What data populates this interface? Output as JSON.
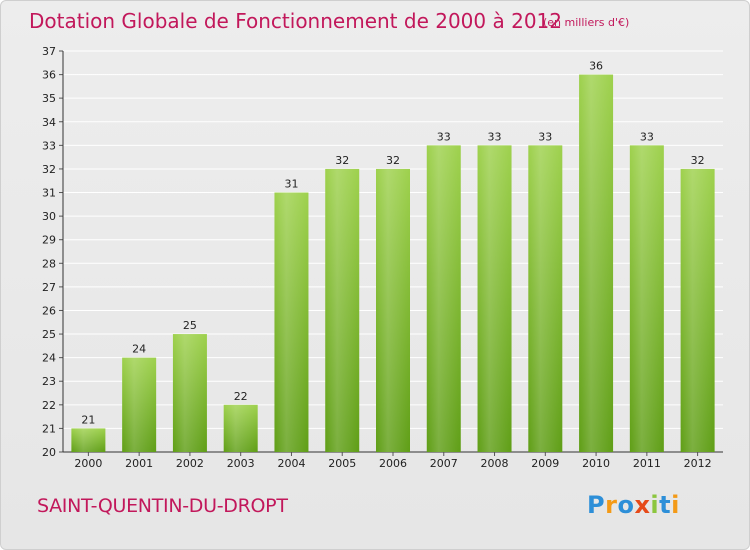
{
  "title": "Dotation Globale de Fonctionnement de 2000 à 2012",
  "subtitle": "(en milliers d'€)",
  "commune": "SAINT-QUENTIN-DU-DROPT",
  "logo_letters": [
    "P",
    "r",
    "o",
    "x",
    "i",
    "t",
    "i"
  ],
  "colors": {
    "bar_top": "#9ed14d",
    "bar_bottom": "#5f9e16",
    "accent": "#c2185b"
  },
  "chart_data": {
    "type": "bar",
    "title": "Dotation Globale de Fonctionnement de 2000 à 2012",
    "subtitle": "(en milliers d'€)",
    "categories": [
      "2000",
      "2001",
      "2002",
      "2003",
      "2004",
      "2005",
      "2006",
      "2007",
      "2008",
      "2009",
      "2010",
      "2011",
      "2012"
    ],
    "values": [
      21,
      24,
      25,
      22,
      31,
      32,
      32,
      33,
      33,
      33,
      36,
      33,
      32
    ],
    "ylim": [
      20,
      37
    ],
    "yticks": [
      20,
      21,
      22,
      23,
      24,
      25,
      26,
      27,
      28,
      29,
      30,
      31,
      32,
      33,
      34,
      35,
      36,
      37
    ],
    "grid": true
  }
}
